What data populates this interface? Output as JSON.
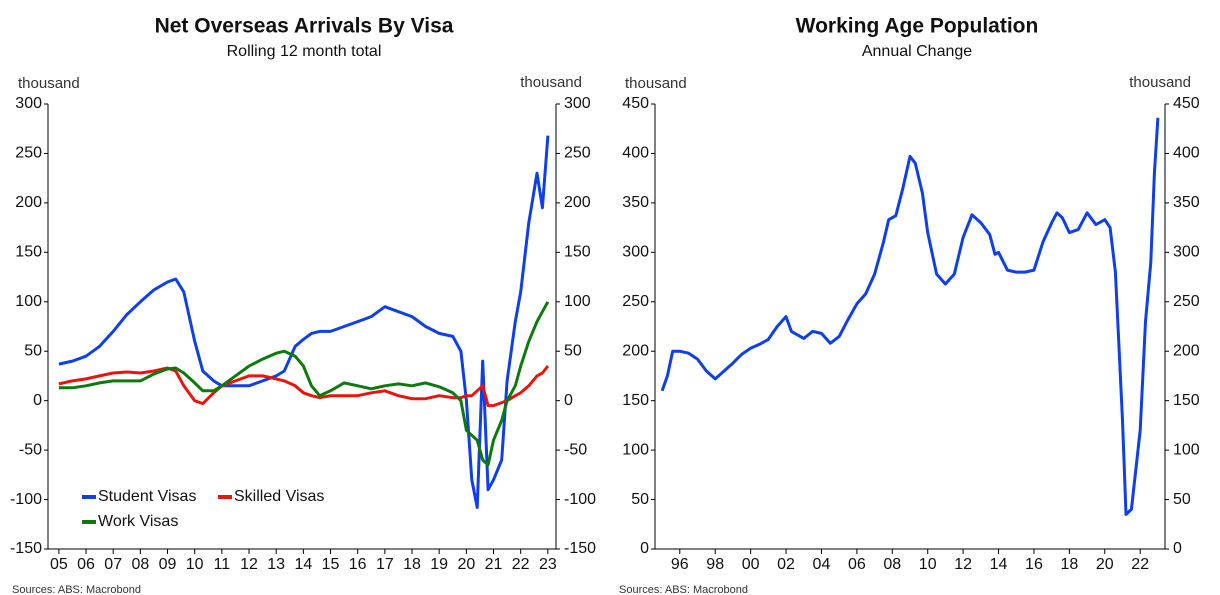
{
  "chart_data": [
    {
      "type": "line",
      "title": "Net Overseas Arrivals By Visa",
      "subtitle": "Rolling 12 month total",
      "ylabel": "thousand",
      "y2label": "thousand",
      "source": "Sources: ABS: Macrobond",
      "legend": "lower left",
      "x": [
        2005.0,
        2005.5,
        2006.0,
        2006.5,
        2007.0,
        2007.5,
        2008.0,
        2008.5,
        2009.0,
        2009.3,
        2009.6,
        2010.0,
        2010.3,
        2010.7,
        2011.0,
        2011.5,
        2012.0,
        2012.5,
        2013.0,
        2013.3,
        2013.7,
        2014.0,
        2014.3,
        2014.6,
        2015.0,
        2015.5,
        2016.0,
        2016.5,
        2017.0,
        2017.5,
        2018.0,
        2018.5,
        2019.0,
        2019.5,
        2019.8,
        2020.0,
        2020.2,
        2020.4,
        2020.6,
        2020.8,
        2021.0,
        2021.3,
        2021.5,
        2021.8,
        2022.0,
        2022.3,
        2022.6,
        2022.8,
        2023.0
      ],
      "series": [
        {
          "name": "Student Visas",
          "color": "#0f3fe6",
          "values": [
            37,
            40,
            45,
            55,
            70,
            87,
            100,
            112,
            120,
            123,
            110,
            60,
            30,
            20,
            15,
            15,
            15,
            20,
            25,
            30,
            55,
            62,
            68,
            70,
            70,
            75,
            80,
            85,
            95,
            90,
            85,
            75,
            68,
            65,
            50,
            0,
            -80,
            -108,
            40,
            -90,
            -80,
            -60,
            20,
            80,
            110,
            180,
            230,
            195,
            268
          ]
        },
        {
          "name": "Skilled Visas",
          "color": "#e8140e",
          "values": [
            17,
            20,
            22,
            25,
            28,
            29,
            28,
            30,
            33,
            30,
            15,
            0,
            -3,
            8,
            15,
            20,
            25,
            25,
            22,
            20,
            15,
            8,
            5,
            3,
            5,
            5,
            5,
            8,
            10,
            5,
            2,
            2,
            5,
            3,
            3,
            5,
            5,
            10,
            15,
            -5,
            -5,
            -2,
            0,
            5,
            8,
            15,
            25,
            28,
            35
          ]
        },
        {
          "name": "Work Visas",
          "color": "#0e7a0e",
          "values": [
            13,
            13,
            15,
            18,
            20,
            20,
            20,
            27,
            32,
            33,
            28,
            18,
            10,
            10,
            15,
            25,
            35,
            42,
            48,
            50,
            45,
            35,
            15,
            5,
            10,
            18,
            15,
            12,
            15,
            17,
            15,
            18,
            14,
            8,
            0,
            -30,
            -35,
            -40,
            -60,
            -65,
            -40,
            -20,
            0,
            15,
            35,
            60,
            80,
            90,
            100
          ]
        }
      ],
      "xlim": [
        2004.6,
        2023.3
      ],
      "xticks": [
        {
          "value": 2005,
          "label": "05"
        },
        {
          "value": 2006,
          "label": "06"
        },
        {
          "value": 2007,
          "label": "07"
        },
        {
          "value": 2008,
          "label": "08"
        },
        {
          "value": 2009,
          "label": "09"
        },
        {
          "value": 2010,
          "label": "10"
        },
        {
          "value": 2011,
          "label": "11"
        },
        {
          "value": 2012,
          "label": "12"
        },
        {
          "value": 2013,
          "label": "13"
        },
        {
          "value": 2014,
          "label": "14"
        },
        {
          "value": 2015,
          "label": "15"
        },
        {
          "value": 2016,
          "label": "16"
        },
        {
          "value": 2017,
          "label": "17"
        },
        {
          "value": 2018,
          "label": "18"
        },
        {
          "value": 2019,
          "label": "19"
        },
        {
          "value": 2020,
          "label": "20"
        },
        {
          "value": 2021,
          "label": "21"
        },
        {
          "value": 2022,
          "label": "22"
        },
        {
          "value": 2023,
          "label": "23"
        }
      ],
      "ylim": [
        -150,
        300
      ],
      "yticks": [
        -150,
        -100,
        -50,
        0,
        50,
        100,
        150,
        200,
        250,
        300
      ],
      "y2lim": [
        -150,
        300
      ],
      "y2ticks": [
        -150,
        -100,
        -50,
        0,
        50,
        100,
        150,
        200,
        250,
        300
      ]
    },
    {
      "type": "line",
      "title": "Working Age Population",
      "subtitle": "Annual Change",
      "ylabel": "thousand",
      "y2label": "thousand",
      "source": "Sources: ABS: Macrobond",
      "x": [
        1995.0,
        1995.3,
        1995.6,
        1996.0,
        1996.5,
        1997.0,
        1997.5,
        1998.0,
        1998.5,
        1999.0,
        1999.5,
        2000.0,
        2000.5,
        2001.0,
        2001.5,
        2002.0,
        2002.3,
        2003.0,
        2003.5,
        2004.0,
        2004.5,
        2005.0,
        2005.5,
        2006.0,
        2006.5,
        2007.0,
        2007.5,
        2007.8,
        2008.2,
        2008.6,
        2009.0,
        2009.3,
        2009.7,
        2010.0,
        2010.5,
        2011.0,
        2011.5,
        2012.0,
        2012.5,
        2013.0,
        2013.5,
        2013.8,
        2014.0,
        2014.5,
        2015.0,
        2015.5,
        2016.0,
        2016.5,
        2017.0,
        2017.3,
        2017.6,
        2018.0,
        2018.5,
        2019.0,
        2019.5,
        2020.0,
        2020.3,
        2020.6,
        2021.0,
        2021.2,
        2021.5,
        2022.0,
        2022.3,
        2022.6,
        2022.8,
        2023.0
      ],
      "series": [
        {
          "color": "#0f3fe6",
          "values": [
            160,
            175,
            200,
            200,
            198,
            192,
            180,
            172,
            180,
            188,
            197,
            203,
            207,
            212,
            225,
            235,
            220,
            213,
            220,
            218,
            208,
            215,
            232,
            248,
            258,
            278,
            310,
            333,
            337,
            365,
            397,
            390,
            360,
            320,
            278,
            268,
            278,
            315,
            338,
            330,
            318,
            298,
            300,
            282,
            280,
            280,
            282,
            310,
            330,
            340,
            335,
            320,
            323,
            340,
            328,
            333,
            325,
            280,
            130,
            35,
            40,
            120,
            230,
            290,
            380,
            436
          ]
        }
      ],
      "xlim": [
        1994.6,
        2023.4
      ],
      "xticks": [
        {
          "value": 1996,
          "label": "96"
        },
        {
          "value": 1998,
          "label": "98"
        },
        {
          "value": 2000,
          "label": "00"
        },
        {
          "value": 2002,
          "label": "02"
        },
        {
          "value": 2004,
          "label": "04"
        },
        {
          "value": 2006,
          "label": "06"
        },
        {
          "value": 2008,
          "label": "08"
        },
        {
          "value": 2010,
          "label": "10"
        },
        {
          "value": 2012,
          "label": "12"
        },
        {
          "value": 2014,
          "label": "14"
        },
        {
          "value": 2016,
          "label": "16"
        },
        {
          "value": 2018,
          "label": "18"
        },
        {
          "value": 2020,
          "label": "20"
        },
        {
          "value": 2022,
          "label": "22"
        }
      ],
      "ylim": [
        0,
        450
      ],
      "yticks": [
        0,
        50,
        100,
        150,
        200,
        250,
        300,
        350,
        400,
        450
      ],
      "y2lim": [
        0,
        450
      ],
      "y2ticks": [
        0,
        50,
        100,
        150,
        200,
        250,
        300,
        350,
        400,
        450
      ]
    }
  ]
}
